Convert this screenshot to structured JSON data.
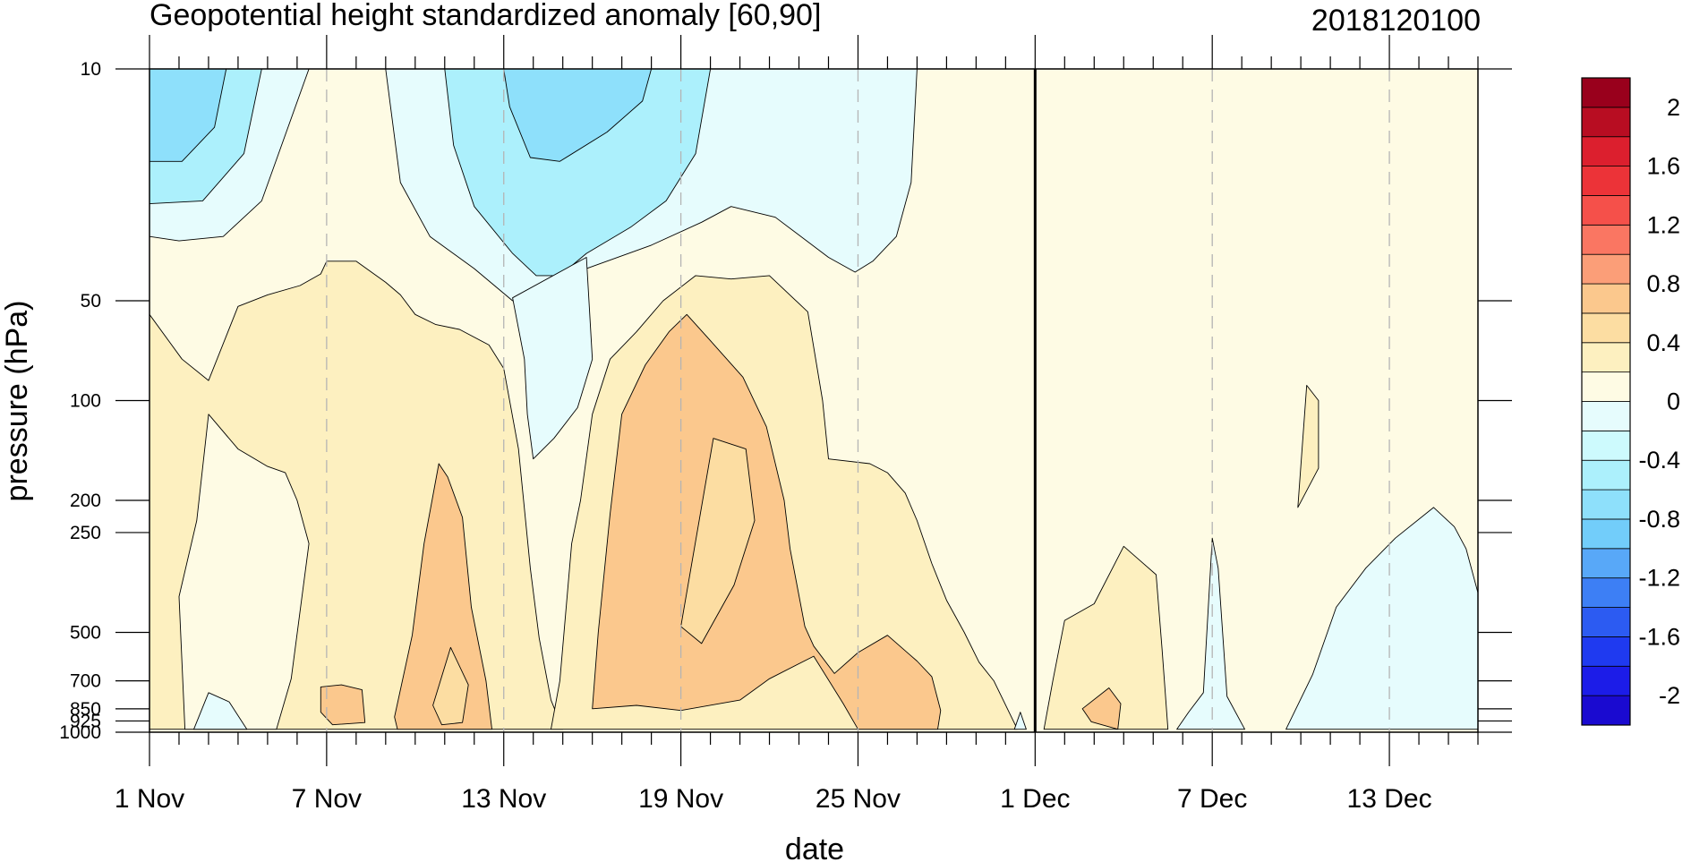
{
  "chart_data": {
    "type": "contour",
    "title": "Geopotential height standardized anomaly [60,90]",
    "run_label": "2018120100",
    "xlabel": "date",
    "ylabel": "pressure (hPa)",
    "x_unit": "days since 1 Nov 2018",
    "x_range": [
      0,
      45
    ],
    "forecast_start_day": 30,
    "y_scale": "log",
    "y_range": [
      10,
      1000
    ],
    "x_ticks": [
      {
        "day": 0,
        "label": "1 Nov"
      },
      {
        "day": 6,
        "label": "7 Nov"
      },
      {
        "day": 12,
        "label": "13 Nov"
      },
      {
        "day": 18,
        "label": "19 Nov"
      },
      {
        "day": 24,
        "label": "25 Nov"
      },
      {
        "day": 30,
        "label": "1 Dec"
      },
      {
        "day": 36,
        "label": "7 Dec"
      },
      {
        "day": 42,
        "label": "13 Dec"
      }
    ],
    "y_ticks": [
      {
        "p": 10,
        "label": "10"
      },
      {
        "p": 50,
        "label": "50"
      },
      {
        "p": 100,
        "label": "100"
      },
      {
        "p": 200,
        "label": "200"
      },
      {
        "p": 250,
        "label": "250"
      },
      {
        "p": 500,
        "label": "500"
      },
      {
        "p": 700,
        "label": "700"
      },
      {
        "p": 850,
        "label": "850"
      },
      {
        "p": 925,
        "label": "925"
      },
      {
        "p": 1000,
        "label": "1000"
      }
    ],
    "colorbar": {
      "colors": [
        "#1a0ad0",
        "#1c1ce8",
        "#1f3af0",
        "#2c5bf2",
        "#3d7ff5",
        "#58a8f8",
        "#72cdfa",
        "#8ee0fb",
        "#acf0fc",
        "#cdfafd",
        "#e6fcfd",
        "#fefbe4",
        "#fdf0c0",
        "#fcdda2",
        "#fbc88d",
        "#fb9e78",
        "#fa7662",
        "#f5504a",
        "#ec3338",
        "#dc1f2e",
        "#b80d22",
        "#99001c"
      ],
      "labels": [
        {
          "value": 2,
          "text": "2"
        },
        {
          "value": 1.6,
          "text": "1.6"
        },
        {
          "value": 1.2,
          "text": "1.2"
        },
        {
          "value": 0.8,
          "text": "0.8"
        },
        {
          "value": 0.4,
          "text": "0.4"
        },
        {
          "value": 0,
          "text": "0"
        },
        {
          "value": -0.4,
          "text": "-0.4"
        },
        {
          "value": -0.8,
          "text": "-0.8"
        },
        {
          "value": -1.2,
          "text": "-1.2"
        },
        {
          "value": -1.6,
          "text": "-1.6"
        },
        {
          "value": -2,
          "text": "-2"
        }
      ]
    },
    "background_color": "#fefbe4",
    "regions": [
      {
        "name": "neg-upper-left-1",
        "value": -0.2,
        "color": "#e6fcfd",
        "pts": [
          [
            0,
            10
          ],
          [
            5.4,
            10
          ],
          [
            3.8,
            25
          ],
          [
            2.5,
            32
          ],
          [
            1,
            33
          ],
          [
            0,
            32
          ]
        ]
      },
      {
        "name": "neg-upper-left-2",
        "value": -0.5,
        "color": "#acf0fc",
        "pts": [
          [
            0,
            10
          ],
          [
            3.8,
            10
          ],
          [
            3.2,
            18
          ],
          [
            1.8,
            25
          ],
          [
            0,
            25.5
          ]
        ]
      },
      {
        "name": "neg-upper-left-3",
        "value": -0.7,
        "color": "#8ee0fb",
        "pts": [
          [
            0,
            10
          ],
          [
            2.6,
            10
          ],
          [
            2.2,
            15
          ],
          [
            1.1,
            19
          ],
          [
            0,
            19
          ]
        ]
      },
      {
        "name": "neg-upper-mid-1",
        "value": -0.2,
        "color": "#e6fcfd",
        "pts": [
          [
            8,
            10
          ],
          [
            26,
            10
          ],
          [
            25.8,
            22
          ],
          [
            25.3,
            32
          ],
          [
            24.5,
            38
          ],
          [
            23.9,
            41
          ],
          [
            23,
            37
          ],
          [
            21.2,
            28
          ],
          [
            19.7,
            26
          ],
          [
            18.7,
            29
          ],
          [
            17,
            34
          ],
          [
            14.8,
            40
          ],
          [
            13.8,
            46
          ],
          [
            12.3,
            50
          ],
          [
            11,
            40
          ],
          [
            9.5,
            32
          ],
          [
            8.5,
            22
          ]
        ]
      },
      {
        "name": "neg-upper-mid-2",
        "value": -0.5,
        "color": "#acf0fc",
        "pts": [
          [
            10,
            10
          ],
          [
            19,
            10
          ],
          [
            18.5,
            18
          ],
          [
            17.5,
            25
          ],
          [
            16.3,
            30
          ],
          [
            14.8,
            36
          ],
          [
            13.9,
            42
          ],
          [
            13.1,
            42
          ],
          [
            12.3,
            36
          ],
          [
            11,
            26
          ],
          [
            10.3,
            17
          ]
        ]
      },
      {
        "name": "neg-upper-mid-3",
        "value": -0.7,
        "color": "#8ee0fb",
        "pts": [
          [
            12,
            10
          ],
          [
            17,
            10
          ],
          [
            16.7,
            12.5
          ],
          [
            15.5,
            15.5
          ],
          [
            13.9,
            19
          ],
          [
            12.9,
            18.5
          ],
          [
            12.2,
            13
          ]
        ]
      },
      {
        "name": "neg-tongue-tropo",
        "value": -0.2,
        "color": "#e6fcfd",
        "pts": [
          [
            12.3,
            49
          ],
          [
            14.8,
            37
          ],
          [
            15,
            75
          ],
          [
            14.5,
            105
          ],
          [
            13.7,
            130
          ],
          [
            13,
            150
          ],
          [
            12.8,
            110
          ],
          [
            12.7,
            75
          ]
        ]
      },
      {
        "name": "pos-left",
        "value": 0.25,
        "color": "#fdf0c0",
        "pts": [
          [
            0,
            55
          ],
          [
            1.1,
            75
          ],
          [
            2,
            87
          ],
          [
            3,
            52
          ],
          [
            4,
            48
          ],
          [
            5.1,
            45
          ],
          [
            5.8,
            41.5
          ],
          [
            6,
            38
          ],
          [
            7,
            38
          ],
          [
            8,
            44
          ],
          [
            8.5,
            48
          ],
          [
            9,
            55
          ],
          [
            9.7,
            59
          ],
          [
            10.5,
            61
          ],
          [
            11.5,
            68
          ],
          [
            12,
            80
          ],
          [
            12.5,
            140
          ],
          [
            12.9,
            320
          ],
          [
            13.2,
            520
          ],
          [
            13.6,
            800
          ],
          [
            14,
            980
          ],
          [
            0,
            980
          ]
        ]
      },
      {
        "name": "pos-left-hole",
        "value": 0.05,
        "color": "#fefbe4",
        "pts": [
          [
            1,
            390
          ],
          [
            1.6,
            230
          ],
          [
            2,
            110
          ],
          [
            3,
            140
          ],
          [
            4,
            158
          ],
          [
            4.6,
            165
          ],
          [
            5,
            200
          ],
          [
            5.4,
            270
          ],
          [
            4.8,
            690
          ],
          [
            4.3,
            980
          ],
          [
            1.2,
            980
          ]
        ]
      },
      {
        "name": "pos-left-peak-a",
        "value": 0.55,
        "color": "#fbc88d",
        "pts": [
          [
            5.8,
            730
          ],
          [
            6.5,
            720
          ],
          [
            7.2,
            745
          ],
          [
            7.3,
            935
          ],
          [
            6.2,
            950
          ],
          [
            5.8,
            870
          ]
        ]
      },
      {
        "name": "pos-left-peak-b",
        "value": 0.55,
        "color": "#fbc88d",
        "pts": [
          [
            8.3,
            900
          ],
          [
            8.9,
            510
          ],
          [
            9.3,
            270
          ],
          [
            9.8,
            155
          ],
          [
            10.1,
            170
          ],
          [
            10.6,
            225
          ],
          [
            10.9,
            420
          ],
          [
            11.4,
            700
          ],
          [
            11.6,
            980
          ],
          [
            8.4,
            980
          ]
        ]
      },
      {
        "name": "pos-left-peak-b-inner",
        "value": 0.75,
        "color": "#fcdda2",
        "pts": [
          [
            9.6,
            830
          ],
          [
            10.2,
            555
          ],
          [
            10.8,
            720
          ],
          [
            10.6,
            935
          ],
          [
            9.9,
            950
          ]
        ]
      },
      {
        "name": "pos-right",
        "value": 0.25,
        "color": "#fdf0c0",
        "pts": [
          [
            13.6,
            980
          ],
          [
            13.9,
            700
          ],
          [
            14.3,
            270
          ],
          [
            14.6,
            200
          ],
          [
            15,
            110
          ],
          [
            15.6,
            75
          ],
          [
            16.5,
            62
          ],
          [
            17,
            55
          ],
          [
            17.4,
            50
          ],
          [
            18.5,
            42
          ],
          [
            19.7,
            43
          ],
          [
            21,
            42
          ],
          [
            22.3,
            54
          ],
          [
            22.8,
            100
          ],
          [
            23,
            150
          ],
          [
            24.4,
            155
          ],
          [
            25,
            165
          ],
          [
            25.6,
            190
          ],
          [
            26,
            230
          ],
          [
            26.5,
            310
          ],
          [
            27,
            400
          ],
          [
            27.6,
            500
          ],
          [
            28.1,
            615
          ],
          [
            28.6,
            700
          ],
          [
            29.4,
            980
          ]
        ]
      },
      {
        "name": "pos-right-peak-a",
        "value": 0.55,
        "color": "#fbc88d",
        "pts": [
          [
            15,
            850
          ],
          [
            15.2,
            500
          ],
          [
            15.6,
            220
          ],
          [
            16,
            110
          ],
          [
            16.8,
            78
          ],
          [
            17.6,
            62
          ],
          [
            18.2,
            55
          ],
          [
            19,
            66
          ],
          [
            20.1,
            85
          ],
          [
            20.9,
            120
          ],
          [
            21.5,
            200
          ],
          [
            21.7,
            280
          ],
          [
            22.2,
            480
          ],
          [
            22.5,
            550
          ],
          [
            23.2,
            665
          ],
          [
            24,
            575
          ],
          [
            25,
            510
          ],
          [
            26,
            610
          ],
          [
            26.5,
            680
          ],
          [
            26.8,
            860
          ],
          [
            26.7,
            980
          ],
          [
            24,
            980
          ],
          [
            23.5,
            820
          ],
          [
            22.5,
            590
          ],
          [
            21,
            690
          ],
          [
            20,
            800
          ],
          [
            18,
            860
          ],
          [
            16.5,
            830
          ]
        ]
      },
      {
        "name": "pos-right-peak-a-inner",
        "value": 0.75,
        "color": "#fcdda2",
        "pts": [
          [
            18,
            480
          ],
          [
            19.1,
            130
          ],
          [
            20.2,
            140
          ],
          [
            20.5,
            230
          ],
          [
            19.8,
            360
          ],
          [
            18.7,
            540
          ]
        ]
      },
      {
        "name": "neg-spike-1",
        "value": -0.2,
        "color": "#e6fcfd",
        "pts": [
          [
            29.3,
            980
          ],
          [
            29.5,
            870
          ],
          [
            29.7,
            980
          ]
        ]
      },
      {
        "name": "neg-low-left",
        "value": -0.2,
        "color": "#e6fcfd",
        "pts": [
          [
            1.5,
            980
          ],
          [
            2,
            760
          ],
          [
            2.7,
            810
          ],
          [
            3.3,
            980
          ]
        ]
      },
      {
        "name": "pos-fc-left",
        "value": 0.25,
        "color": "#fdf0c0",
        "pts": [
          [
            30.3,
            980
          ],
          [
            30.6,
            700
          ],
          [
            31,
            460
          ],
          [
            32,
            410
          ],
          [
            33,
            275
          ],
          [
            34.1,
            335
          ],
          [
            34.3,
            560
          ],
          [
            34.5,
            980
          ]
        ]
      },
      {
        "name": "pos-fc-left-inner",
        "value": 0.55,
        "color": "#fbc88d",
        "pts": [
          [
            31.6,
            850
          ],
          [
            32.5,
            735
          ],
          [
            32.9,
            820
          ],
          [
            32.8,
            980
          ],
          [
            31.9,
            930
          ]
        ]
      },
      {
        "name": "neg-fc-spike",
        "value": -0.2,
        "color": "#e6fcfd",
        "pts": [
          [
            34.8,
            980
          ],
          [
            35.2,
            870
          ],
          [
            35.7,
            760
          ],
          [
            36,
            260
          ],
          [
            36.2,
            320
          ],
          [
            36.5,
            780
          ],
          [
            37.1,
            980
          ]
        ]
      },
      {
        "name": "neg-fc-right",
        "value": -0.2,
        "color": "#e6fcfd",
        "pts": [
          [
            38.5,
            980
          ],
          [
            39.4,
            670
          ],
          [
            40.2,
            420
          ],
          [
            41.2,
            320
          ],
          [
            42.2,
            260
          ],
          [
            43.5,
            210
          ],
          [
            44.2,
            240
          ],
          [
            44.6,
            280
          ],
          [
            45,
            380
          ],
          [
            45,
            980
          ]
        ]
      },
      {
        "name": "pos-fc-small",
        "value": 0.25,
        "color": "#fdf0c0",
        "pts": [
          [
            38.9,
            210
          ],
          [
            39.2,
            90
          ],
          [
            39.6,
            100
          ],
          [
            39.6,
            160
          ]
        ]
      }
    ]
  }
}
